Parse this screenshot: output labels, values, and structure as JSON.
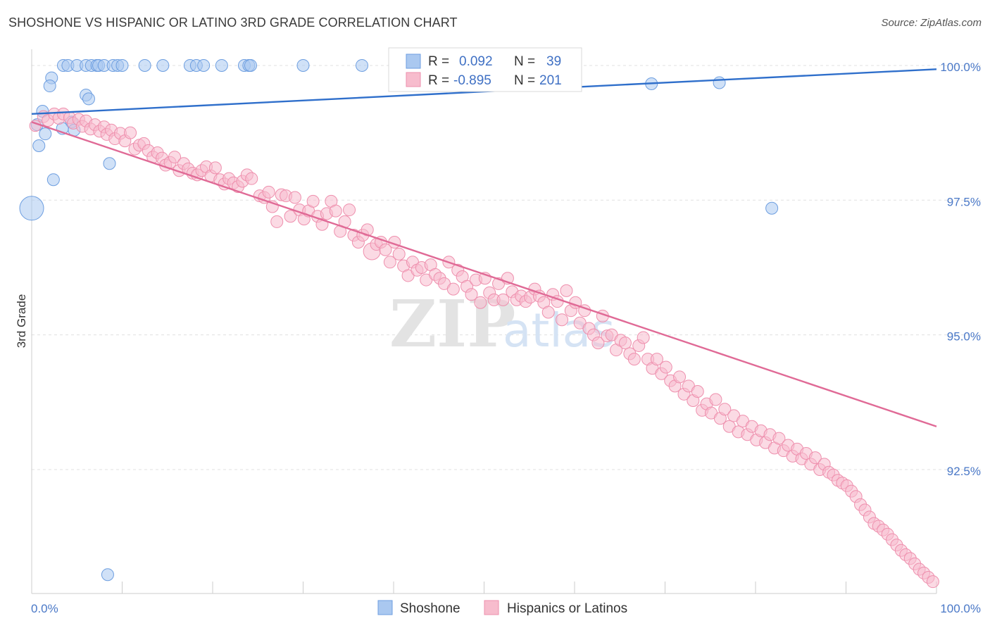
{
  "title": "SHOSHONE VS HISPANIC OR LATINO 3RD GRADE CORRELATION CHART",
  "source": "Source: ZipAtlas.com",
  "colors": {
    "blue_fill": "#aac8f0",
    "blue_stroke": "#6d9ee0",
    "blue_line": "#2f6fcb",
    "pink_fill": "#f7bccd",
    "pink_stroke": "#ee8fad",
    "pink_line": "#e06a96",
    "grid": "#e0e0e0",
    "tick_text": "#4a78c7"
  },
  "legend": {
    "rows": [
      {
        "r_label": "R =",
        "r_value": "0.092",
        "n_label": "N =",
        "n_value": "39",
        "color": "blue"
      },
      {
        "r_label": "R =",
        "r_value": "-0.895",
        "n_label": "N =",
        "n_value": "201",
        "color": "pink"
      }
    ]
  },
  "bottom_legend": [
    "Shoshone",
    "Hispanics or Latinos"
  ],
  "watermark": {
    "part1": "ZIP",
    "part2": "atlas"
  },
  "chart_data": {
    "type": "scatter",
    "title": "SHOSHONE VS HISPANIC OR LATINO 3RD GRADE CORRELATION CHART",
    "xlabel": "",
    "ylabel": "3rd Grade",
    "x_tick_labels": [
      "0.0%",
      "100.0%"
    ],
    "y_tick_labels": [
      "100.0%",
      "97.5%",
      "95.0%",
      "92.5%"
    ],
    "y_ticks": [
      100.0,
      97.5,
      95.0,
      92.5
    ],
    "xlim": [
      0,
      100
    ],
    "ylim": [
      90.2,
      100.3
    ],
    "grid": true,
    "series": [
      {
        "name": "Shoshone",
        "color": "blue",
        "trend": [
          [
            0,
            99.1
          ],
          [
            100,
            99.93
          ]
        ],
        "points": [
          [
            3.5,
            100
          ],
          [
            4,
            100
          ],
          [
            5,
            100
          ],
          [
            6,
            100
          ],
          [
            6.6,
            100
          ],
          [
            7.2,
            100
          ],
          [
            7.4,
            100
          ],
          [
            8,
            100
          ],
          [
            9,
            100
          ],
          [
            9.5,
            100
          ],
          [
            10,
            100
          ],
          [
            12.5,
            100
          ],
          [
            14.5,
            100
          ],
          [
            17.5,
            100
          ],
          [
            18.2,
            100
          ],
          [
            19,
            100
          ],
          [
            21,
            100
          ],
          [
            23.5,
            100
          ],
          [
            24,
            100
          ],
          [
            24.2,
            100
          ],
          [
            30,
            100
          ],
          [
            36.5,
            100
          ],
          [
            2.2,
            99.77
          ],
          [
            2,
            99.62
          ],
          [
            6,
            99.45
          ],
          [
            6.3,
            99.38
          ],
          [
            1.2,
            99.15
          ],
          [
            4.4,
            98.95
          ],
          [
            0.6,
            98.9
          ],
          [
            3.4,
            98.83
          ],
          [
            1.5,
            98.73
          ],
          [
            4.7,
            98.8
          ],
          [
            0.8,
            98.51
          ],
          [
            8.6,
            98.18
          ],
          [
            2.4,
            97.88
          ],
          [
            0,
            97.35
          ],
          [
            8.4,
            90.55
          ],
          [
            68.5,
            99.66
          ],
          [
            76,
            99.68
          ],
          [
            81.8,
            97.35
          ]
        ],
        "sizes": {
          "35": 17
        }
      },
      {
        "name": "Hispanics or Latinos",
        "color": "pink",
        "trend": [
          [
            0,
            98.95
          ],
          [
            100,
            93.3
          ]
        ],
        "points": [
          [
            0.4,
            98.88
          ],
          [
            1.3,
            99.05
          ],
          [
            1.8,
            98.98
          ],
          [
            2.5,
            99.1
          ],
          [
            3,
            99.02
          ],
          [
            3.5,
            99.1
          ],
          [
            4.2,
            99.03
          ],
          [
            4.6,
            98.93
          ],
          [
            5.2,
            99.0
          ],
          [
            5.6,
            98.87
          ],
          [
            6,
            98.97
          ],
          [
            6.5,
            98.82
          ],
          [
            7,
            98.9
          ],
          [
            7.5,
            98.78
          ],
          [
            8,
            98.86
          ],
          [
            8.3,
            98.72
          ],
          [
            8.8,
            98.8
          ],
          [
            9.2,
            98.64
          ],
          [
            9.8,
            98.74
          ],
          [
            10.3,
            98.6
          ],
          [
            10.9,
            98.75
          ],
          [
            11.4,
            98.45
          ],
          [
            11.9,
            98.52
          ],
          [
            12.4,
            98.55
          ],
          [
            12.9,
            98.42
          ],
          [
            13.4,
            98.3
          ],
          [
            13.9,
            98.38
          ],
          [
            14.4,
            98.28
          ],
          [
            14.8,
            98.15
          ],
          [
            15.3,
            98.2
          ],
          [
            15.8,
            98.3
          ],
          [
            16.3,
            98.05
          ],
          [
            16.8,
            98.18
          ],
          [
            17.3,
            98.08
          ],
          [
            17.8,
            98.0
          ],
          [
            18.3,
            97.97
          ],
          [
            18.8,
            98.05
          ],
          [
            19.3,
            98.12
          ],
          [
            19.8,
            97.95
          ],
          [
            20.3,
            98.1
          ],
          [
            20.8,
            97.88
          ],
          [
            21.3,
            97.8
          ],
          [
            21.8,
            97.9
          ],
          [
            22.3,
            97.82
          ],
          [
            22.8,
            97.75
          ],
          [
            23.3,
            97.85
          ],
          [
            23.8,
            97.97
          ],
          [
            24.3,
            97.9
          ],
          [
            25.2,
            97.58
          ],
          [
            25.7,
            97.55
          ],
          [
            26.2,
            97.65
          ],
          [
            26.6,
            97.38
          ],
          [
            27.1,
            97.1
          ],
          [
            27.6,
            97.6
          ],
          [
            28.1,
            97.58
          ],
          [
            28.6,
            97.2
          ],
          [
            29.1,
            97.55
          ],
          [
            29.6,
            97.32
          ],
          [
            30.1,
            97.15
          ],
          [
            30.6,
            97.3
          ],
          [
            31.1,
            97.48
          ],
          [
            31.6,
            97.2
          ],
          [
            32.1,
            97.05
          ],
          [
            32.6,
            97.25
          ],
          [
            33.1,
            97.48
          ],
          [
            33.6,
            97.3
          ],
          [
            34.1,
            96.92
          ],
          [
            34.6,
            97.1
          ],
          [
            35.1,
            97.32
          ],
          [
            35.6,
            96.85
          ],
          [
            36.1,
            96.72
          ],
          [
            36.6,
            96.85
          ],
          [
            37.1,
            96.95
          ],
          [
            37.6,
            96.55
          ],
          [
            38.1,
            96.68
          ],
          [
            38.6,
            96.72
          ],
          [
            39.1,
            96.58
          ],
          [
            39.6,
            96.35
          ],
          [
            40.1,
            96.72
          ],
          [
            40.6,
            96.5
          ],
          [
            41.1,
            96.28
          ],
          [
            41.6,
            96.1
          ],
          [
            42.1,
            96.35
          ],
          [
            42.6,
            96.2
          ],
          [
            43.1,
            96.25
          ],
          [
            43.6,
            96.02
          ],
          [
            44.1,
            96.3
          ],
          [
            44.6,
            96.12
          ],
          [
            45.1,
            96.05
          ],
          [
            45.6,
            95.95
          ],
          [
            46.1,
            96.35
          ],
          [
            46.6,
            95.85
          ],
          [
            47.1,
            96.2
          ],
          [
            47.6,
            96.08
          ],
          [
            48.1,
            95.9
          ],
          [
            48.6,
            95.75
          ],
          [
            49.1,
            96.02
          ],
          [
            49.6,
            95.6
          ],
          [
            50.1,
            96.05
          ],
          [
            50.6,
            95.78
          ],
          [
            51.1,
            95.65
          ],
          [
            51.6,
            95.95
          ],
          [
            52.1,
            95.65
          ],
          [
            52.6,
            96.05
          ],
          [
            53.1,
            95.8
          ],
          [
            53.6,
            95.65
          ],
          [
            54.1,
            95.72
          ],
          [
            54.6,
            95.62
          ],
          [
            55.1,
            95.7
          ],
          [
            55.6,
            95.85
          ],
          [
            56.1,
            95.72
          ],
          [
            56.6,
            95.6
          ],
          [
            57.1,
            95.42
          ],
          [
            57.6,
            95.75
          ],
          [
            58.1,
            95.62
          ],
          [
            58.6,
            95.28
          ],
          [
            59.1,
            95.82
          ],
          [
            59.6,
            95.45
          ],
          [
            60.1,
            95.6
          ],
          [
            60.6,
            95.22
          ],
          [
            61.1,
            95.45
          ],
          [
            61.6,
            95.12
          ],
          [
            62.1,
            95.0
          ],
          [
            62.6,
            94.85
          ],
          [
            63.1,
            95.35
          ],
          [
            63.6,
            94.98
          ],
          [
            64.1,
            95.0
          ],
          [
            64.6,
            94.72
          ],
          [
            65.1,
            94.9
          ],
          [
            65.6,
            94.85
          ],
          [
            66.1,
            94.65
          ],
          [
            66.6,
            94.55
          ],
          [
            67.1,
            94.8
          ],
          [
            67.6,
            94.95
          ],
          [
            68.1,
            94.55
          ],
          [
            68.6,
            94.38
          ],
          [
            69.1,
            94.55
          ],
          [
            69.6,
            94.28
          ],
          [
            70.1,
            94.4
          ],
          [
            70.6,
            94.15
          ],
          [
            71.1,
            94.05
          ],
          [
            71.6,
            94.22
          ],
          [
            72.1,
            93.9
          ],
          [
            72.6,
            94.05
          ],
          [
            73.1,
            93.78
          ],
          [
            73.6,
            93.95
          ],
          [
            74.1,
            93.6
          ],
          [
            74.6,
            93.72
          ],
          [
            75.1,
            93.55
          ],
          [
            75.6,
            93.8
          ],
          [
            76.1,
            93.45
          ],
          [
            76.6,
            93.62
          ],
          [
            77.1,
            93.3
          ],
          [
            77.6,
            93.5
          ],
          [
            78.1,
            93.2
          ],
          [
            78.6,
            93.4
          ],
          [
            79.1,
            93.15
          ],
          [
            79.6,
            93.3
          ],
          [
            80.1,
            93.05
          ],
          [
            80.6,
            93.22
          ],
          [
            81.1,
            93.0
          ],
          [
            81.6,
            93.15
          ],
          [
            82.1,
            92.9
          ],
          [
            82.6,
            93.08
          ],
          [
            83.1,
            92.85
          ],
          [
            83.6,
            92.95
          ],
          [
            84.1,
            92.75
          ],
          [
            84.6,
            92.88
          ],
          [
            85.1,
            92.7
          ],
          [
            85.6,
            92.8
          ],
          [
            86.1,
            92.6
          ],
          [
            86.6,
            92.72
          ],
          [
            87.1,
            92.5
          ],
          [
            87.6,
            92.6
          ],
          [
            88.1,
            92.45
          ],
          [
            88.6,
            92.4
          ],
          [
            89.1,
            92.3
          ],
          [
            89.6,
            92.25
          ],
          [
            90.1,
            92.2
          ],
          [
            90.6,
            92.1
          ],
          [
            91.1,
            92.0
          ],
          [
            91.6,
            91.85
          ],
          [
            92.1,
            91.75
          ],
          [
            92.6,
            91.62
          ],
          [
            93.1,
            91.5
          ],
          [
            93.6,
            91.45
          ],
          [
            94.1,
            91.38
          ],
          [
            94.6,
            91.3
          ],
          [
            95.1,
            91.2
          ],
          [
            95.6,
            91.1
          ],
          [
            96.1,
            91.0
          ],
          [
            96.6,
            90.92
          ],
          [
            97.1,
            90.85
          ],
          [
            97.6,
            90.75
          ],
          [
            98.1,
            90.65
          ],
          [
            98.6,
            90.58
          ],
          [
            99.1,
            90.5
          ],
          [
            99.6,
            90.42
          ]
        ],
        "sizes": {
          "0": 8,
          "73": 12
        }
      }
    ]
  }
}
